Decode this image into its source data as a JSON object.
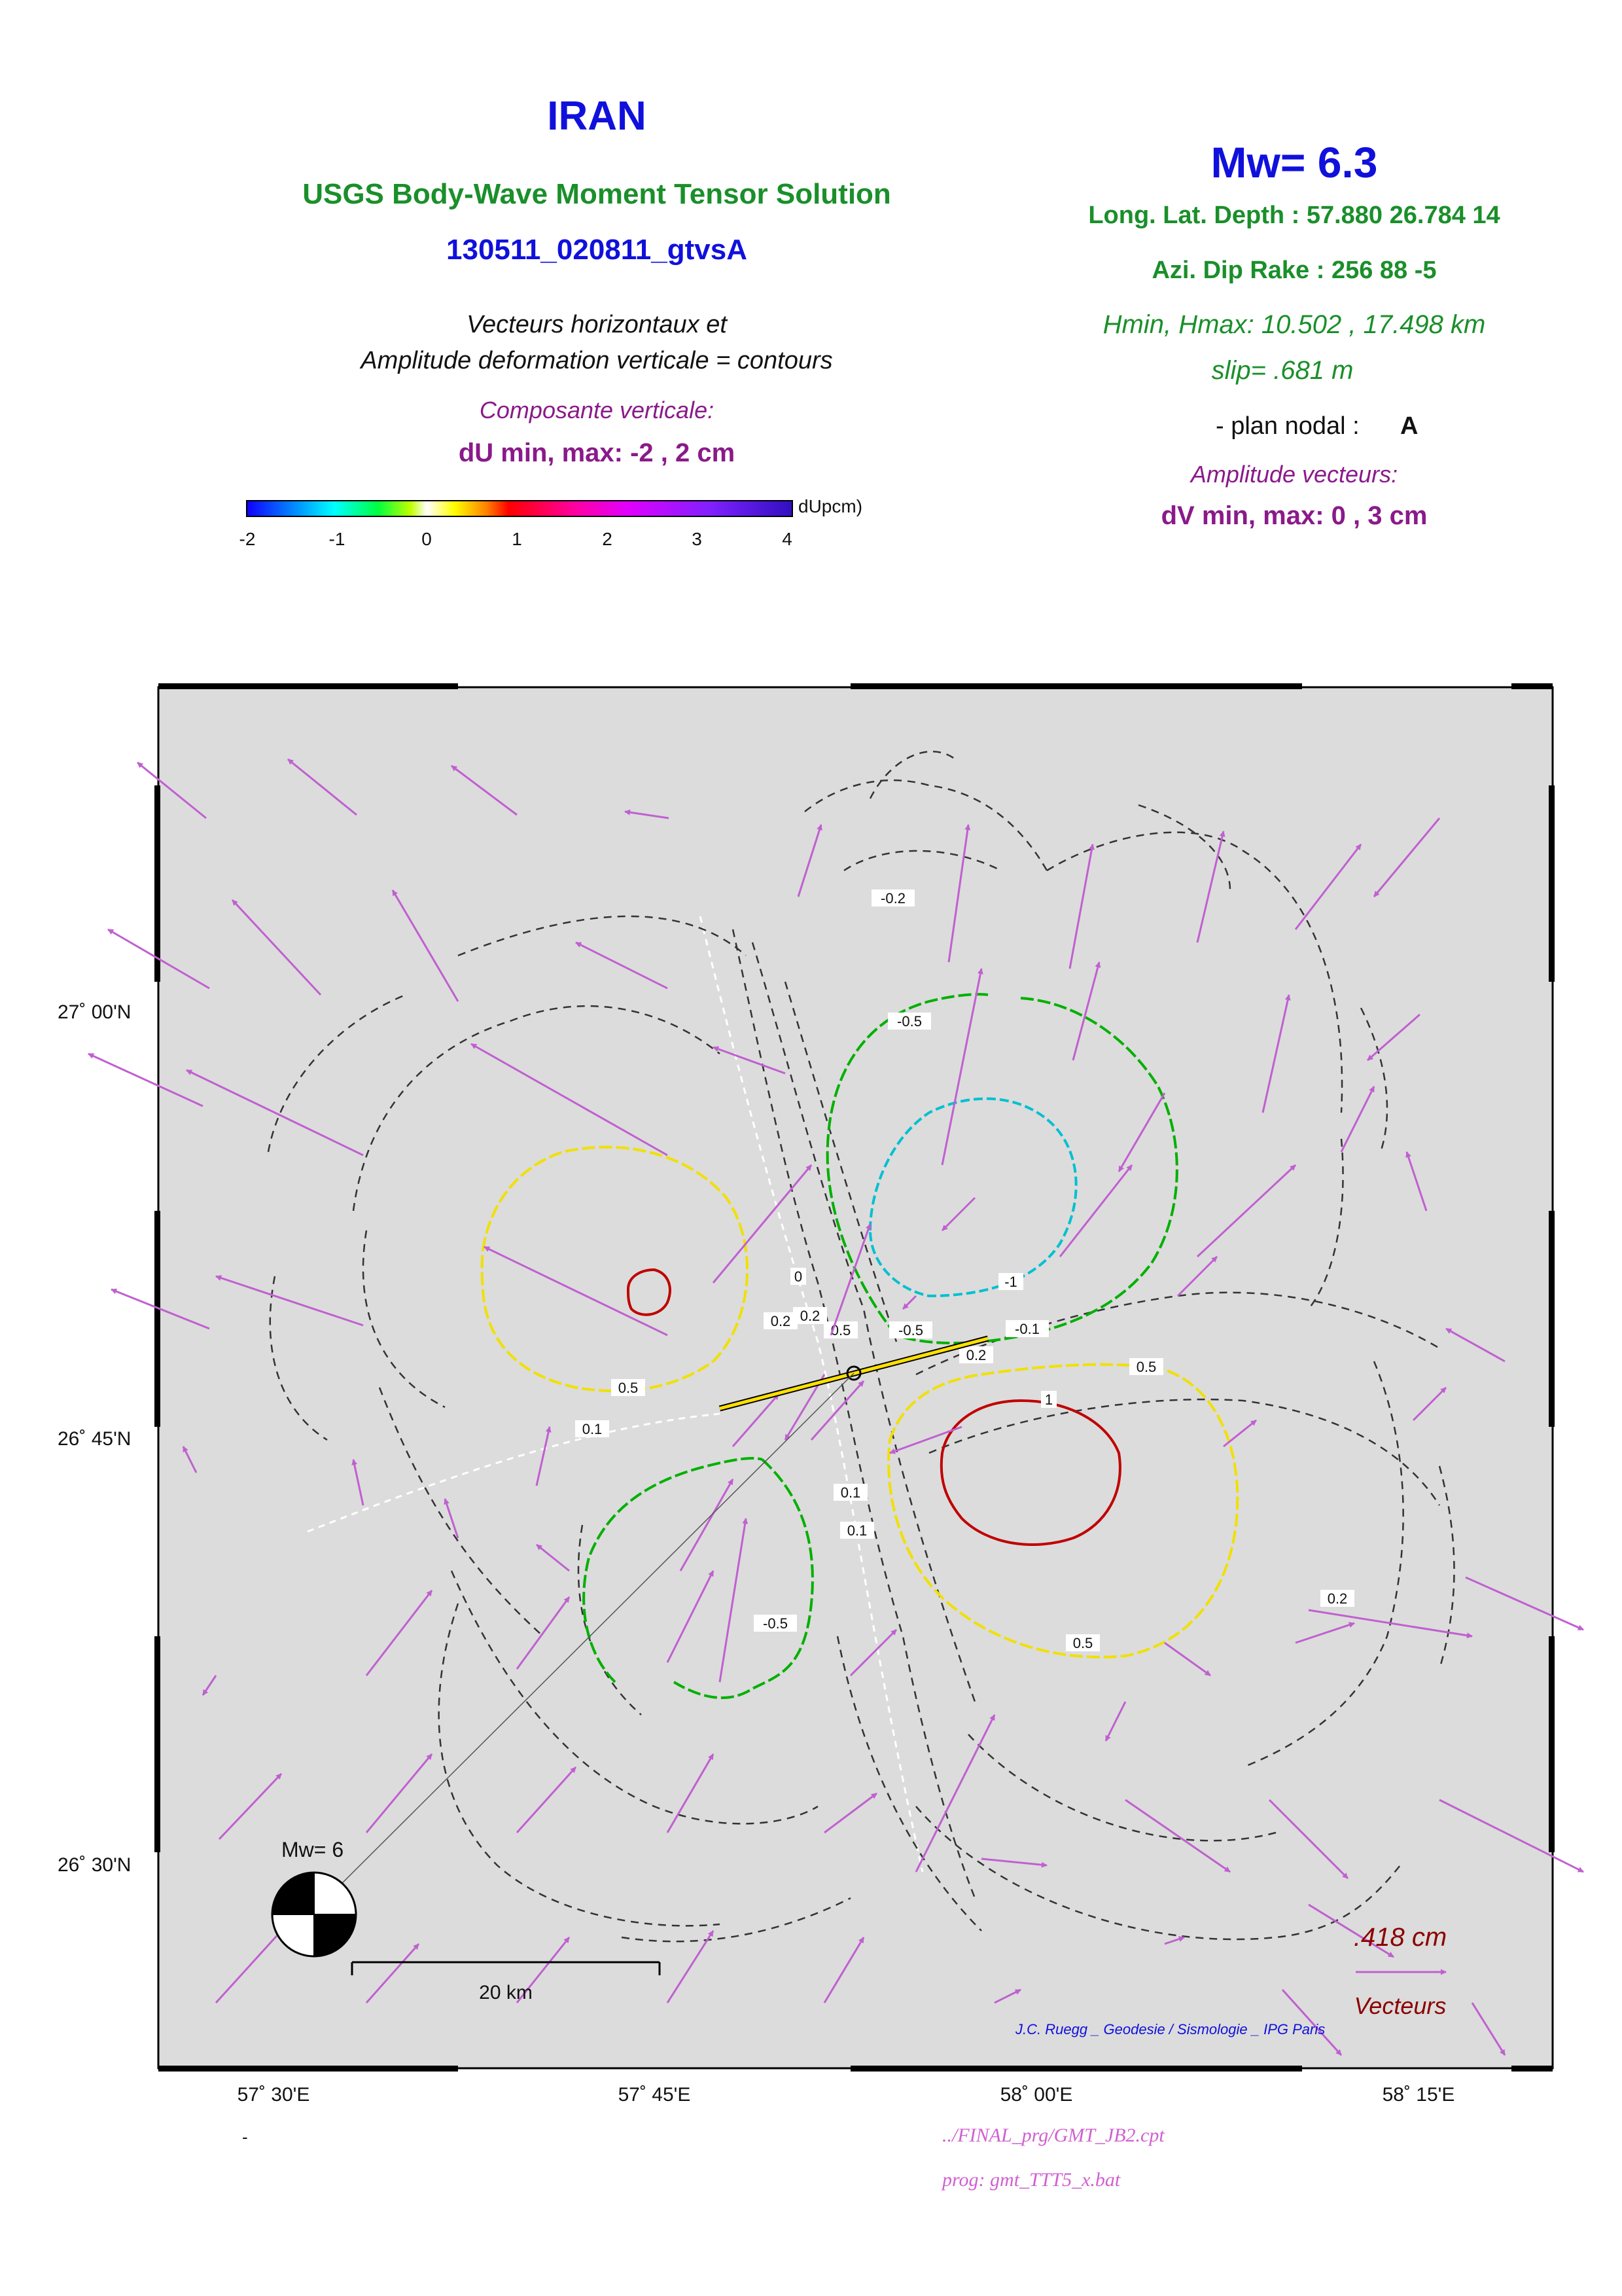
{
  "header": {
    "region": "IRAN",
    "solution_title": "USGS Body-Wave Moment Tensor Solution",
    "event_id": "130511_020811_gtvsA",
    "desc_line1": "Vecteurs horizontaux et",
    "desc_line2": "Amplitude deformation verticale = contours",
    "vertical_component_label": "Composante verticale:",
    "du_range": "dU min, max:  -2 , 2 cm",
    "colorbar_unit": "dUpcm)",
    "colorbar_ticks": [
      "-2",
      "-1",
      "0",
      "1",
      "2",
      "3",
      "4"
    ]
  },
  "params": {
    "magnitude": "Mw= 6.3",
    "location": "Long. Lat. Depth : 57.880 26.784 14",
    "mechanism": "Azi.  Dip   Rake :  256 88 -5",
    "depth_range": "Hmin, Hmax:  10.502 , 17.498 km",
    "slip": "slip= .681 m",
    "nodal_plane_label": "- plan nodal :",
    "nodal_plane_value": "A",
    "vector_amplitude_label": "Amplitude vecteurs:",
    "dv_range": "dV min, max:  0 , 3 cm"
  },
  "map": {
    "lat_labels": [
      "27˚ 00'N",
      "26˚ 45'N",
      "26˚ 30'N"
    ],
    "lon_labels": [
      "57˚ 30'E",
      "57˚ 45'E",
      "58˚ 00'E",
      "58˚ 15'E"
    ],
    "contour_labels": [
      "-0.2",
      "-0.5",
      "-1",
      "-0.5",
      "-0.1",
      "0.2",
      "0.5",
      "0.5",
      "1",
      "0.5",
      "0.5",
      "0.1",
      "0.1",
      "0.2",
      "0.1",
      "-0.5",
      "0.2",
      "0.2",
      "0"
    ],
    "beachball_label": "Mw= 6",
    "scale_label": "20 km",
    "vector_scale_value": ".418  cm",
    "vector_scale_label": "Vecteurs",
    "credit": "J.C. Ruegg _ Geodesie / Sismologie _ IPG Paris"
  },
  "footer": {
    "dash": "-",
    "cpt_file": "../FINAL_prg/GMT_JB2.cpt",
    "program": "prog: gmt_TTT5_x.bat"
  },
  "colors": {
    "title_blue": "#1010dd",
    "subtitle_green": "#1a8f2a",
    "magenta": "#8a1a8a",
    "vector": "#c060d0",
    "map_bg": "#dcdcdc",
    "dark_red": "#8b0000"
  }
}
